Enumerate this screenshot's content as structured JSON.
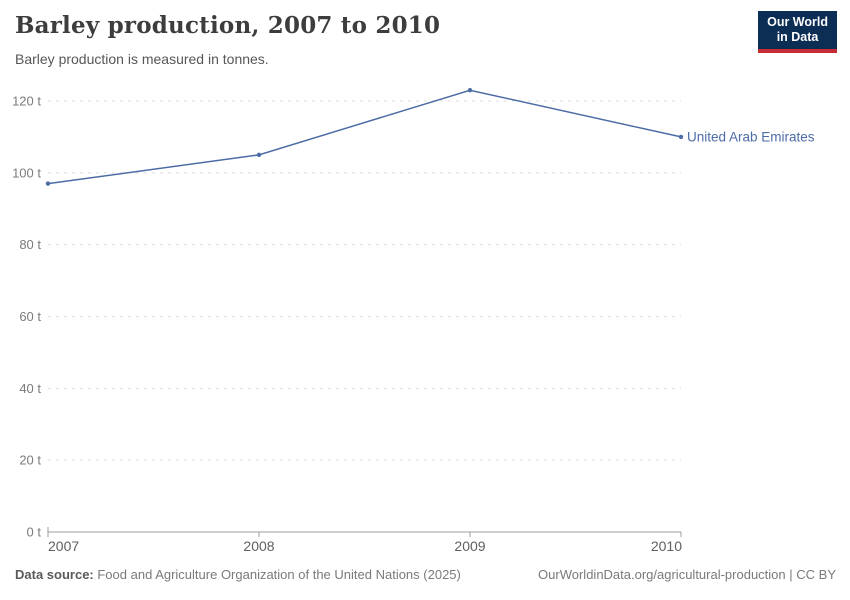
{
  "header": {
    "title": "Barley production, 2007 to 2010",
    "subtitle": "Barley production is measured in tonnes."
  },
  "logo": {
    "line1": "Our World",
    "line2": "in Data"
  },
  "chart_data": {
    "type": "line",
    "x": [
      2007,
      2008,
      2009,
      2010
    ],
    "series": [
      {
        "name": "United Arab Emirates",
        "values": [
          97,
          105,
          123,
          110
        ],
        "color": "#4C6CA6"
      }
    ],
    "title": "Barley production, 2007 to 2010",
    "xlabel": "",
    "ylabel": "",
    "unit": "t",
    "ylim": [
      0,
      120
    ],
    "yticks": [
      0,
      20,
      40,
      60,
      80,
      100,
      120
    ],
    "xticks": [
      2007,
      2008,
      2009,
      2010
    ],
    "grid": "horizontal-dashed",
    "legend": "inline-label-right"
  },
  "footer": {
    "source_label": "Data source:",
    "source_text": " Food and Agriculture Organization of the United Nations (2025)",
    "link": "OurWorldinData.org/agricultural-production",
    "separator": " | ",
    "license": "CC BY"
  },
  "colors": {
    "series_blue": "#4C6CA6",
    "logo_bg": "#0C2D54",
    "logo_accent": "#C72C35",
    "gridline": "#dcdcdc",
    "axis": "#9c9c9c",
    "ytick_text": "#7b7b7b",
    "xtick_text": "#5f5f5f",
    "title_text": "#3d3d3d"
  }
}
